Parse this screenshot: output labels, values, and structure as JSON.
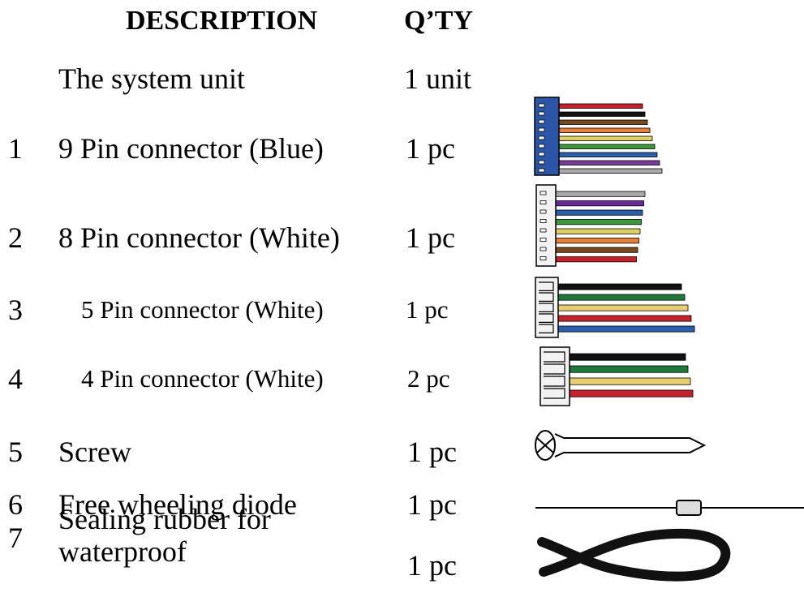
{
  "header": {
    "description": "DESCRIPTION",
    "qty": "Q’TY"
  },
  "rows": [
    {
      "description": "The system unit",
      "qty": "1 unit"
    },
    {
      "number": "1",
      "description": "9 Pin connector (Blue)",
      "qty": "1 pc"
    },
    {
      "number": "2",
      "description": "8 Pin connector (White)",
      "qty": "1 pc"
    },
    {
      "number": "3",
      "description": "5 Pin connector (White)",
      "qty": "1 pc"
    },
    {
      "number": "4",
      "description": "4 Pin connector (White)",
      "qty": "2 pc"
    },
    {
      "number": "5",
      "description": "Screw",
      "qty": "1 pc"
    },
    {
      "number": "6",
      "description": "Free wheeling diode",
      "qty": "1 pc"
    },
    {
      "number": "7",
      "description": "Sealing rubber for waterproof",
      "qty": "1 pc"
    }
  ]
}
